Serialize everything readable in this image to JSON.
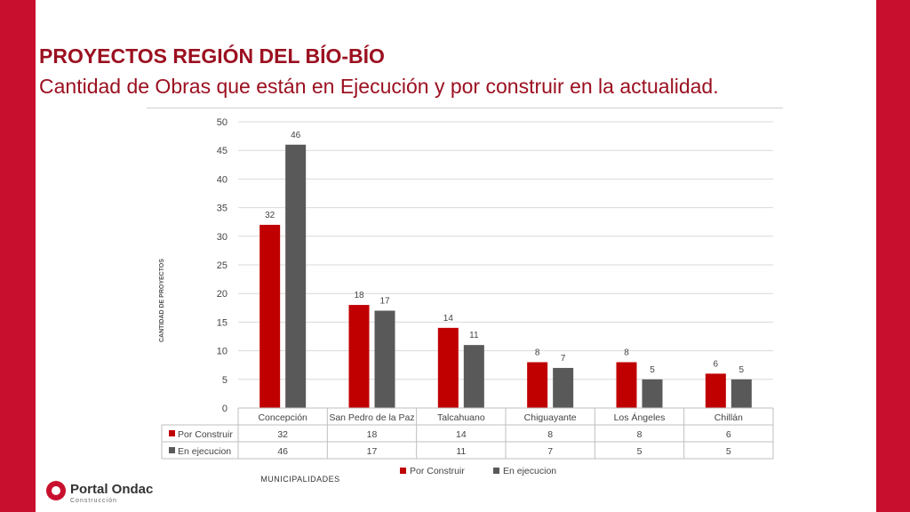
{
  "header": {
    "title": "PROYECTOS REGIÓN DEL BÍO-BÍO",
    "subtitle": "Cantidad  de Obras que están en Ejecución y por construir en la actualidad."
  },
  "logo": {
    "name": "Portal Ondac",
    "tagline": "Construcción"
  },
  "colors": {
    "brand_red": "#c8102e",
    "series_red": "#c00000",
    "series_gray": "#595959"
  },
  "chart_data": {
    "type": "bar",
    "title": "",
    "xlabel": "MUNICIPALIDADES",
    "ylabel": "CANTIDAD DE PROYECTOS",
    "ylim": [
      0,
      50
    ],
    "yticks": [
      0,
      5,
      10,
      15,
      20,
      25,
      30,
      35,
      40,
      45,
      50
    ],
    "grid": true,
    "legend_position": "bottom",
    "categories": [
      "Concepción",
      "San Pedro de la Paz",
      "Talcahuano",
      "Chiguayante",
      "Los Ángeles",
      "Chillán"
    ],
    "series": [
      {
        "name": "Por Construir",
        "color": "#c00000",
        "values": [
          32,
          18,
          14,
          8,
          8,
          6
        ]
      },
      {
        "name": "En ejecucion",
        "color": "#595959",
        "values": [
          46,
          17,
          11,
          7,
          5,
          5
        ]
      }
    ]
  }
}
